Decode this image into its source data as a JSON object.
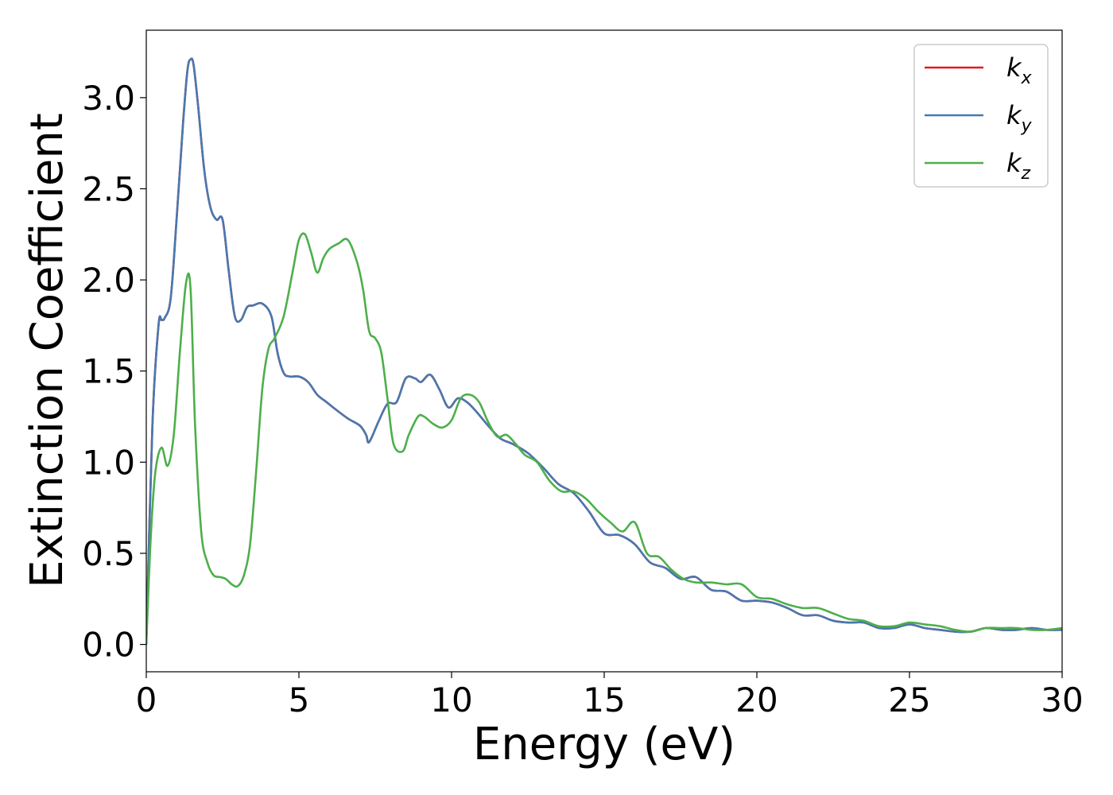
{
  "chart_data": {
    "type": "line",
    "xlabel": "Energy (eV)",
    "ylabel": "Extinction Coefficient",
    "xlim": [
      0,
      30
    ],
    "ylim": [
      -0.15,
      3.37
    ],
    "xticks": [
      "0",
      "5",
      "10",
      "15",
      "20",
      "25",
      "30"
    ],
    "yticks": [
      "0.0",
      "0.5",
      "1.0",
      "1.5",
      "2.0",
      "2.5",
      "3.0"
    ],
    "grid": false,
    "legend_position": "top-right",
    "series": [
      {
        "name": "k",
        "sub": "x",
        "color": "#e41a1c",
        "x": [
          0,
          0.2,
          0.4,
          0.5,
          0.6,
          0.8,
          1.0,
          1.2,
          1.35,
          1.45,
          1.55,
          1.7,
          1.9,
          2.1,
          2.3,
          2.5,
          2.7,
          2.9,
          3.1,
          3.3,
          3.5,
          3.8,
          4.1,
          4.3,
          4.5,
          4.7,
          5.0,
          5.3,
          5.6,
          5.9,
          6.2,
          6.6,
          7.0,
          7.2,
          7.3,
          7.6,
          7.9,
          8.2,
          8.5,
          8.8,
          9.0,
          9.3,
          9.6,
          9.9,
          10.2,
          10.5,
          10.8,
          11.2,
          11.6,
          12.0,
          12.5,
          13.0,
          13.5,
          14.0,
          14.5,
          15.0,
          15.5,
          16.0,
          16.5,
          17.0,
          17.5,
          18.0,
          18.5,
          19.0,
          19.5,
          20.0,
          20.5,
          21.0,
          21.5,
          22.0,
          22.5,
          23.0,
          23.5,
          24.0,
          24.5,
          25.0,
          25.5,
          26.0,
          26.5,
          27.0,
          27.5,
          28.0,
          28.5,
          29.0,
          29.5,
          30.0
        ],
        "y": [
          0.0,
          1.2,
          1.75,
          1.78,
          1.79,
          1.9,
          2.35,
          2.85,
          3.15,
          3.21,
          3.18,
          2.95,
          2.6,
          2.4,
          2.33,
          2.33,
          2.05,
          1.8,
          1.78,
          1.85,
          1.86,
          1.87,
          1.8,
          1.6,
          1.49,
          1.47,
          1.47,
          1.44,
          1.37,
          1.33,
          1.29,
          1.24,
          1.2,
          1.15,
          1.11,
          1.22,
          1.32,
          1.33,
          1.46,
          1.46,
          1.44,
          1.48,
          1.4,
          1.3,
          1.35,
          1.33,
          1.28,
          1.2,
          1.13,
          1.1,
          1.05,
          0.97,
          0.88,
          0.83,
          0.73,
          0.61,
          0.6,
          0.55,
          0.45,
          0.42,
          0.36,
          0.37,
          0.3,
          0.29,
          0.24,
          0.24,
          0.23,
          0.2,
          0.16,
          0.16,
          0.13,
          0.12,
          0.12,
          0.09,
          0.09,
          0.11,
          0.09,
          0.08,
          0.07,
          0.07,
          0.09,
          0.08,
          0.08,
          0.09,
          0.08,
          0.08
        ]
      },
      {
        "name": "k",
        "sub": "y",
        "color": "#4878b0",
        "x": [
          0,
          0.2,
          0.4,
          0.5,
          0.6,
          0.8,
          1.0,
          1.2,
          1.35,
          1.45,
          1.55,
          1.7,
          1.9,
          2.1,
          2.3,
          2.5,
          2.7,
          2.9,
          3.1,
          3.3,
          3.5,
          3.8,
          4.1,
          4.3,
          4.5,
          4.7,
          5.0,
          5.3,
          5.6,
          5.9,
          6.2,
          6.6,
          7.0,
          7.2,
          7.3,
          7.6,
          7.9,
          8.2,
          8.5,
          8.8,
          9.0,
          9.3,
          9.6,
          9.9,
          10.2,
          10.5,
          10.8,
          11.2,
          11.6,
          12.0,
          12.5,
          13.0,
          13.5,
          14.0,
          14.5,
          15.0,
          15.5,
          16.0,
          16.5,
          17.0,
          17.5,
          18.0,
          18.5,
          19.0,
          19.5,
          20.0,
          20.5,
          21.0,
          21.5,
          22.0,
          22.5,
          23.0,
          23.5,
          24.0,
          24.5,
          25.0,
          25.5,
          26.0,
          26.5,
          27.0,
          27.5,
          28.0,
          28.5,
          29.0,
          29.5,
          30.0
        ],
        "y": [
          0.0,
          1.2,
          1.75,
          1.78,
          1.79,
          1.9,
          2.35,
          2.85,
          3.15,
          3.21,
          3.18,
          2.95,
          2.6,
          2.4,
          2.33,
          2.33,
          2.05,
          1.8,
          1.78,
          1.85,
          1.86,
          1.87,
          1.8,
          1.6,
          1.49,
          1.47,
          1.47,
          1.44,
          1.37,
          1.33,
          1.29,
          1.24,
          1.2,
          1.15,
          1.11,
          1.22,
          1.32,
          1.33,
          1.46,
          1.46,
          1.44,
          1.48,
          1.4,
          1.3,
          1.35,
          1.33,
          1.28,
          1.2,
          1.13,
          1.1,
          1.05,
          0.97,
          0.88,
          0.83,
          0.73,
          0.61,
          0.6,
          0.55,
          0.45,
          0.42,
          0.36,
          0.37,
          0.3,
          0.29,
          0.24,
          0.24,
          0.23,
          0.2,
          0.16,
          0.16,
          0.13,
          0.12,
          0.12,
          0.09,
          0.09,
          0.11,
          0.09,
          0.08,
          0.07,
          0.07,
          0.09,
          0.08,
          0.08,
          0.09,
          0.08,
          0.08
        ]
      },
      {
        "name": "k",
        "sub": "z",
        "color": "#4daf4a",
        "x": [
          0,
          0.15,
          0.3,
          0.5,
          0.7,
          0.9,
          1.1,
          1.3,
          1.45,
          1.6,
          1.8,
          2.0,
          2.2,
          2.4,
          2.6,
          2.8,
          3.0,
          3.2,
          3.4,
          3.6,
          3.8,
          4.0,
          4.2,
          4.5,
          4.8,
          5.0,
          5.2,
          5.4,
          5.6,
          5.8,
          6.0,
          6.3,
          6.6,
          6.9,
          7.1,
          7.3,
          7.5,
          7.7,
          7.9,
          8.1,
          8.4,
          8.6,
          8.9,
          9.1,
          9.4,
          9.7,
          10.0,
          10.3,
          10.6,
          10.9,
          11.2,
          11.5,
          11.8,
          12.1,
          12.4,
          12.8,
          13.2,
          13.6,
          14.0,
          14.4,
          14.8,
          15.2,
          15.6,
          16.0,
          16.4,
          16.8,
          17.2,
          17.6,
          18.0,
          18.5,
          19.0,
          19.5,
          20.0,
          20.5,
          21.0,
          21.5,
          22.0,
          22.5,
          23.0,
          23.5,
          24.0,
          24.5,
          25.0,
          25.5,
          26.0,
          26.5,
          27.0,
          27.5,
          28.0,
          28.5,
          29.0,
          29.5,
          30.0
        ],
        "y": [
          0.0,
          0.6,
          0.95,
          1.08,
          0.98,
          1.15,
          1.6,
          1.98,
          1.95,
          1.2,
          0.62,
          0.45,
          0.38,
          0.37,
          0.36,
          0.33,
          0.32,
          0.38,
          0.55,
          0.95,
          1.4,
          1.62,
          1.68,
          1.8,
          2.05,
          2.22,
          2.25,
          2.15,
          2.04,
          2.12,
          2.17,
          2.2,
          2.22,
          2.1,
          1.95,
          1.72,
          1.68,
          1.6,
          1.35,
          1.1,
          1.06,
          1.15,
          1.25,
          1.25,
          1.21,
          1.19,
          1.23,
          1.35,
          1.37,
          1.33,
          1.22,
          1.14,
          1.15,
          1.1,
          1.04,
          1.0,
          0.9,
          0.84,
          0.84,
          0.8,
          0.73,
          0.67,
          0.62,
          0.67,
          0.5,
          0.48,
          0.41,
          0.36,
          0.34,
          0.34,
          0.33,
          0.33,
          0.26,
          0.25,
          0.22,
          0.2,
          0.2,
          0.17,
          0.14,
          0.13,
          0.1,
          0.1,
          0.12,
          0.11,
          0.1,
          0.08,
          0.07,
          0.09,
          0.09,
          0.09,
          0.08,
          0.08,
          0.09
        ]
      }
    ]
  }
}
